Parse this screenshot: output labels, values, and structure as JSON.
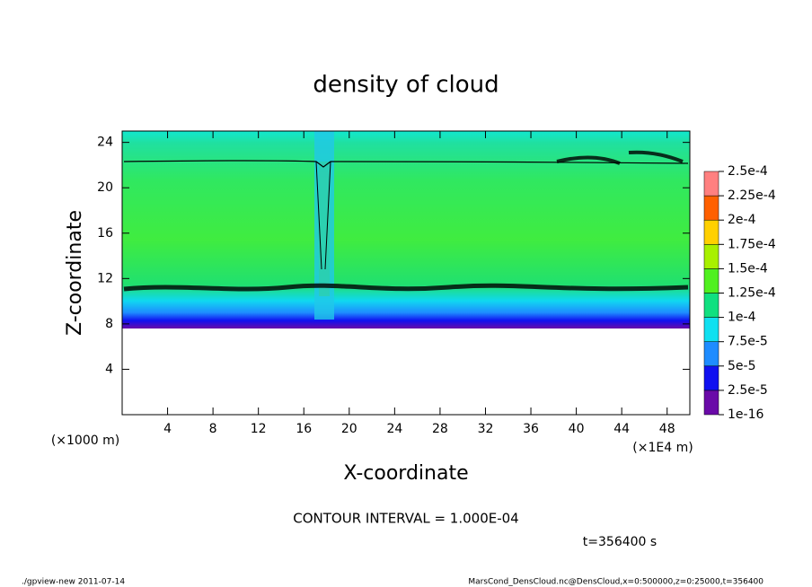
{
  "chart_data": {
    "type": "contour",
    "title": "density of cloud",
    "x_label": "X-coordinate",
    "y_label": "Z-coordinate",
    "x_unit": "(×1E4 m)",
    "y_unit": "(×1000 m)",
    "xlim": [
      0,
      50
    ],
    "xticks": [
      4,
      8,
      12,
      16,
      20,
      24,
      28,
      32,
      36,
      40,
      44,
      48
    ],
    "ylim": [
      0,
      25
    ],
    "yticks": [
      4,
      8,
      12,
      16,
      20,
      24
    ],
    "colorbar": {
      "levels": [
        {
          "value": 1e-16,
          "label": "1e-16"
        },
        {
          "value": 2.5e-05,
          "label": "2.5e-5"
        },
        {
          "value": 5e-05,
          "label": "5e-5"
        },
        {
          "value": 7.5e-05,
          "label": "7.5e-5"
        },
        {
          "value": 0.0001,
          "label": "1e-4"
        },
        {
          "value": 0.000125,
          "label": "1.25e-4"
        },
        {
          "value": 0.00015,
          "label": "1.5e-4"
        },
        {
          "value": 0.000175,
          "label": "1.75e-4"
        },
        {
          "value": 0.0002,
          "label": "2e-4"
        },
        {
          "value": 0.000225,
          "label": "2.25e-4"
        },
        {
          "value": 0.00025,
          "label": "2.5e-4"
        }
      ],
      "colors": [
        "#6a0aa8",
        "#1010f0",
        "#1e8cff",
        "#10e0f0",
        "#10e080",
        "#50f020",
        "#a8f000",
        "#ffd000",
        "#ff6000",
        "#ff8080"
      ]
    },
    "annotations": [
      "CONTOUR INTERVAL = 1.000E-04",
      "t=356400 s"
    ],
    "footer_left": "./gpview-new  2011-07-14",
    "footer_right": "MarsCond_DensCloud.nc@DensCloud,x=0:500000,z=0:25000,t=356400"
  }
}
